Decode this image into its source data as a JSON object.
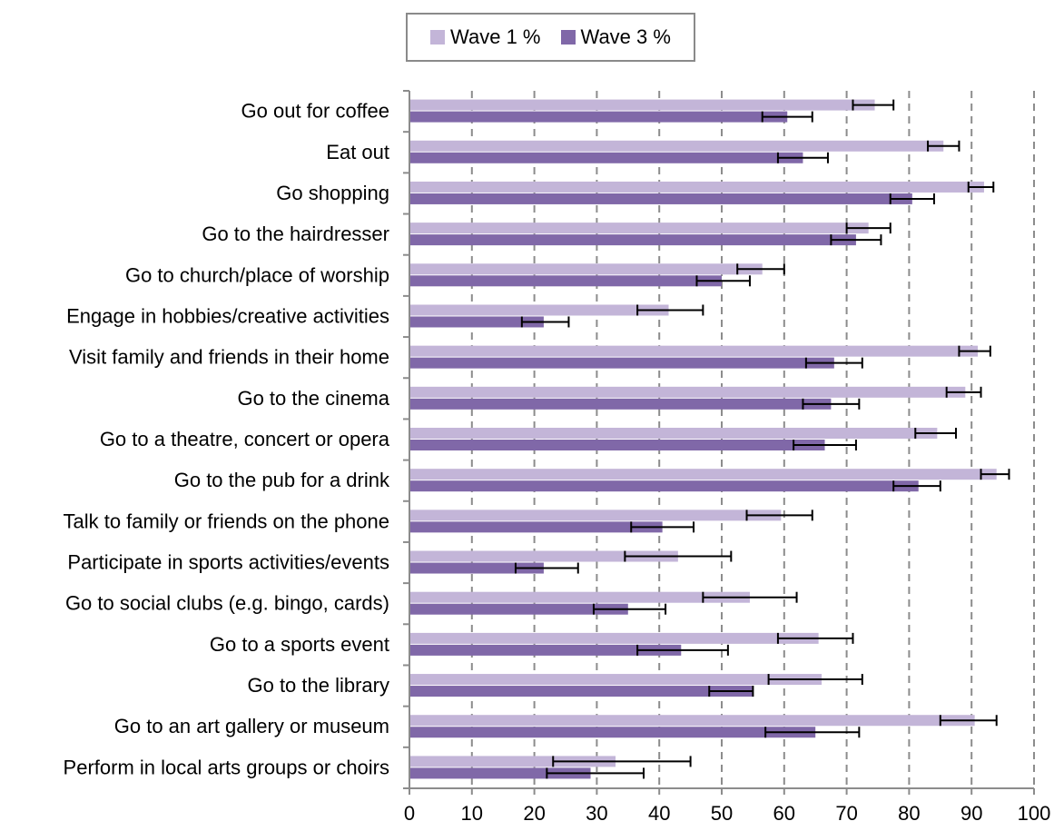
{
  "legend": {
    "items": [
      {
        "label": "Wave 1 %",
        "color": "#c3b5d8"
      },
      {
        "label": "Wave 3 %",
        "color": "#8068a8"
      }
    ]
  },
  "chart_data": {
    "type": "bar",
    "orientation": "horizontal",
    "categories": [
      "Go out for coffee",
      "Eat out",
      "Go shopping",
      "Go to the hairdresser",
      "Go to church/place of worship",
      "Engage in hobbies/creative activities",
      "Visit family and friends in their home",
      "Go to the cinema",
      "Go to a theatre, concert or opera",
      "Go to the pub for a drink",
      "Talk to family or friends on the phone",
      "Participate in sports activities/events",
      "Go to social clubs (e.g. bingo, cards)",
      "Go to a sports event",
      "Go to the library",
      "Go to an art gallery or museum",
      "Perform in local arts groups or choirs"
    ],
    "series": [
      {
        "name": "Wave 1 %",
        "color": "#c3b5d8",
        "values": [
          74.5,
          85.5,
          92,
          73.5,
          56.5,
          41.5,
          91,
          89,
          84.5,
          94,
          59.5,
          43,
          54.5,
          65.5,
          66,
          90.5,
          33
        ],
        "error_low": [
          71,
          83,
          89.5,
          70,
          52.5,
          36.5,
          88,
          86,
          81,
          91.5,
          54,
          34.5,
          47,
          59,
          57.5,
          85,
          23
        ],
        "error_high": [
          77.5,
          88,
          93.5,
          77,
          60,
          47,
          93,
          91.5,
          87.5,
          96,
          64.5,
          51.5,
          62,
          71,
          72.5,
          94,
          45
        ]
      },
      {
        "name": "Wave 3 %",
        "color": "#8068a8",
        "values": [
          60.5,
          63,
          80.5,
          71.5,
          50,
          21.5,
          68,
          67.5,
          66.5,
          81.5,
          40.5,
          21.5,
          35,
          43.5,
          55,
          65,
          29
        ],
        "error_low": [
          56.5,
          59,
          77,
          67.5,
          46,
          18,
          63.5,
          63,
          61.5,
          77.5,
          35.5,
          17,
          29.5,
          36.5,
          48,
          57,
          22
        ],
        "error_high": [
          64.5,
          67,
          84,
          75.5,
          54.5,
          25.5,
          72.5,
          72,
          71.5,
          85,
          45.5,
          27,
          41,
          51,
          55,
          72,
          37.5
        ]
      }
    ],
    "xlim": [
      0,
      100
    ],
    "xticks": [
      0,
      10,
      20,
      30,
      40,
      50,
      60,
      70,
      80,
      90,
      100
    ],
    "grid": "vertical dashed",
    "legend_position": "top-center"
  }
}
